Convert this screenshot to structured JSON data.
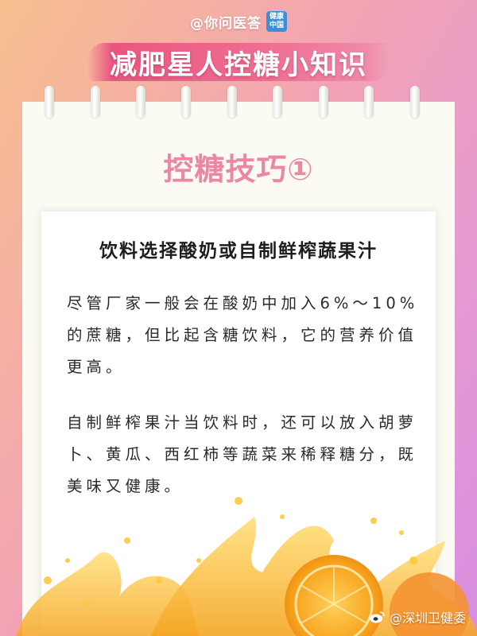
{
  "top_watermark": {
    "text": "@你问医答",
    "logo_line1": "健康",
    "logo_line2": "中国"
  },
  "banner": {
    "title": "减肥星人控糖小知识"
  },
  "section": {
    "title": "控糖技巧①"
  },
  "content": {
    "heading": "饮料选择酸奶或自制鲜榨蔬果汁",
    "paragraph1": "尽管厂家一般会在酸奶中加入6%～10%的蔗糖，但比起含糖饮料，它的营养价值更高。",
    "paragraph2": "自制鲜榨果汁当饮料时，还可以放入胡萝卜、黄瓜、西红柿等蔬菜来稀释糖分，既美味又健康。"
  },
  "bottom_watermark": {
    "text": "@深圳卫健委"
  },
  "colors": {
    "accent_pink": "#ec86a3",
    "banner_pink": "#e9567f",
    "juice_orange": "#f7a21b"
  }
}
